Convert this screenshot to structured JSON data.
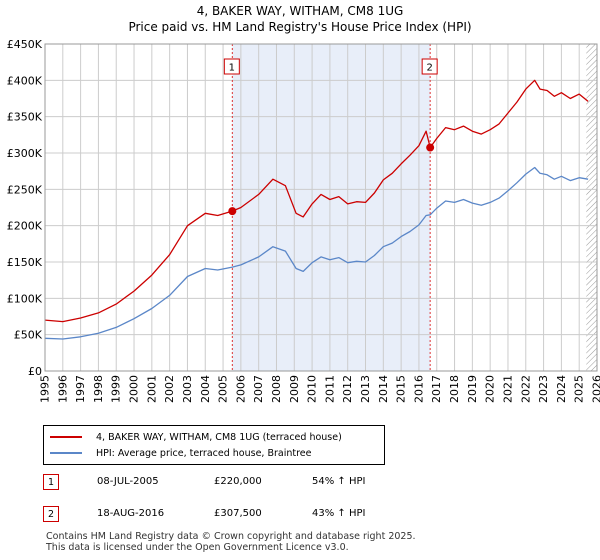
{
  "header": {
    "title": "4, BAKER WAY, WITHAM, CM8 1UG",
    "subtitle": "Price paid vs. HM Land Registry's House Price Index (HPI)"
  },
  "colors": {
    "property": "#cc0000",
    "hpi": "#5b87c8",
    "shade": "#e8eef9",
    "grid": "#cccccc",
    "marker_line": "#dd3333"
  },
  "chart_data": {
    "type": "line",
    "title": "4, BAKER WAY, WITHAM, CM8 1UG",
    "subtitle": "Price paid vs. HM Land Registry's House Price Index (HPI)",
    "xlabel": "",
    "ylabel": "",
    "xlim": [
      1995,
      2026
    ],
    "ylim": [
      0,
      450000
    ],
    "y_ticks": [
      0,
      50000,
      100000,
      150000,
      200000,
      250000,
      300000,
      350000,
      400000,
      450000
    ],
    "y_tick_labels": [
      "£0",
      "£50K",
      "£100K",
      "£150K",
      "£200K",
      "£250K",
      "£300K",
      "£350K",
      "£400K",
      "£450K"
    ],
    "x_ticks": [
      "1995",
      "1996",
      "1997",
      "1998",
      "1999",
      "2000",
      "2001",
      "2002",
      "2003",
      "2004",
      "2005",
      "2006",
      "2007",
      "2008",
      "2009",
      "2010",
      "2011",
      "2012",
      "2013",
      "2014",
      "2015",
      "2016",
      "2017",
      "2018",
      "2019",
      "2020",
      "2021",
      "2022",
      "2023",
      "2024",
      "2025",
      "2026"
    ],
    "grid": true,
    "shaded_range": [
      2005.52,
      2016.63
    ],
    "hatched_from": 2025.4,
    "series": [
      {
        "name": "4, BAKER WAY, WITHAM, CM8 1UG (terraced house)",
        "color": "#cc0000",
        "x": [
          1995.0,
          1996.0,
          1997.0,
          1998.0,
          1999.0,
          2000.0,
          2001.0,
          2002.0,
          2003.0,
          2004.0,
          2004.7,
          2005.52,
          2006.0,
          2007.0,
          2007.8,
          2008.5,
          2009.1,
          2009.5,
          2010.0,
          2010.5,
          2011.0,
          2011.5,
          2012.0,
          2012.5,
          2013.0,
          2013.5,
          2014.0,
          2014.5,
          2015.0,
          2015.5,
          2016.0,
          2016.4,
          2016.63,
          2017.0,
          2017.5,
          2018.0,
          2018.5,
          2019.0,
          2019.5,
          2020.0,
          2020.5,
          2021.0,
          2021.5,
          2022.0,
          2022.5,
          2022.8,
          2023.2,
          2023.6,
          2024.0,
          2024.5,
          2025.0,
          2025.5
        ],
        "values": [
          70000,
          68000,
          73000,
          80000,
          92000,
          110000,
          132000,
          160000,
          200000,
          217000,
          214000,
          220000,
          225000,
          243000,
          264000,
          255000,
          217000,
          212000,
          230000,
          243000,
          236000,
          240000,
          230000,
          233000,
          232000,
          245000,
          263000,
          272000,
          285000,
          297000,
          310000,
          330000,
          307500,
          320000,
          335000,
          332000,
          337000,
          330000,
          326000,
          332000,
          340000,
          355000,
          370000,
          388000,
          400000,
          388000,
          386000,
          378000,
          383000,
          375000,
          381000,
          371000
        ]
      },
      {
        "name": "HPI: Average price, terraced house, Braintree",
        "color": "#5b87c8",
        "x": [
          1995.0,
          1996.0,
          1997.0,
          1998.0,
          1999.0,
          2000.0,
          2001.0,
          2002.0,
          2003.0,
          2004.0,
          2004.7,
          2005.52,
          2006.0,
          2007.0,
          2007.8,
          2008.5,
          2009.1,
          2009.5,
          2010.0,
          2010.5,
          2011.0,
          2011.5,
          2012.0,
          2012.5,
          2013.0,
          2013.5,
          2014.0,
          2014.5,
          2015.0,
          2015.5,
          2016.0,
          2016.4,
          2016.63,
          2017.0,
          2017.5,
          2018.0,
          2018.5,
          2019.0,
          2019.5,
          2020.0,
          2020.5,
          2021.0,
          2021.5,
          2022.0,
          2022.5,
          2022.8,
          2023.2,
          2023.6,
          2024.0,
          2024.5,
          2025.0,
          2025.5
        ],
        "values": [
          45000,
          44000,
          47000,
          52000,
          60000,
          72000,
          86000,
          104000,
          130000,
          141000,
          139000,
          143000,
          146000,
          157000,
          171000,
          165000,
          141000,
          137000,
          149000,
          157000,
          153000,
          156000,
          149000,
          151000,
          150000,
          159000,
          171000,
          176000,
          185000,
          192000,
          201000,
          214000,
          215000,
          224000,
          234000,
          232000,
          236000,
          231000,
          228000,
          232000,
          238000,
          248000,
          259000,
          271000,
          280000,
          272000,
          270000,
          264000,
          268000,
          262000,
          266000,
          264000
        ]
      }
    ],
    "annotations": [
      {
        "label": "1",
        "x": 2005.52,
        "y": 220000
      },
      {
        "label": "2",
        "x": 2016.63,
        "y": 307500
      }
    ]
  },
  "legend": {
    "items": [
      {
        "label": "4, BAKER WAY, WITHAM, CM8 1UG (terraced house)"
      },
      {
        "label": "HPI: Average price, terraced house, Braintree"
      }
    ]
  },
  "transactions": [
    {
      "num": "1",
      "date": "08-JUL-2005",
      "price": "£220,000",
      "hpi": "54% ↑ HPI"
    },
    {
      "num": "2",
      "date": "18-AUG-2016",
      "price": "£307,500",
      "hpi": "43% ↑ HPI"
    }
  ],
  "footer": {
    "line1": "Contains HM Land Registry data © Crown copyright and database right 2025.",
    "line2": "This data is licensed under the Open Government Licence v3.0."
  }
}
